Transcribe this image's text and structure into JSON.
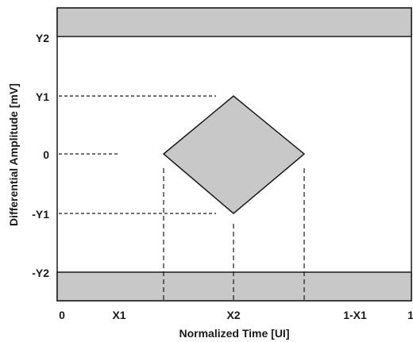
{
  "colors": {
    "band_fill": "#c8c8c8",
    "mask_fill": "#c8c8c8",
    "stroke": "#1a1a1a",
    "background": "#ffffff"
  },
  "axes": {
    "xlabel": "Normalized Time [UI]",
    "ylabel": "Differential Amplitude [mV]"
  },
  "y_ticks": {
    "y2": "Y2",
    "y1": "Y1",
    "zero": "0",
    "neg_y1": "-Y1",
    "neg_y2": "-Y2"
  },
  "x_ticks": {
    "zero": "0",
    "x1": "X1",
    "x2": "X2",
    "one_minus_x1": "1-X1",
    "one": "1"
  }
}
